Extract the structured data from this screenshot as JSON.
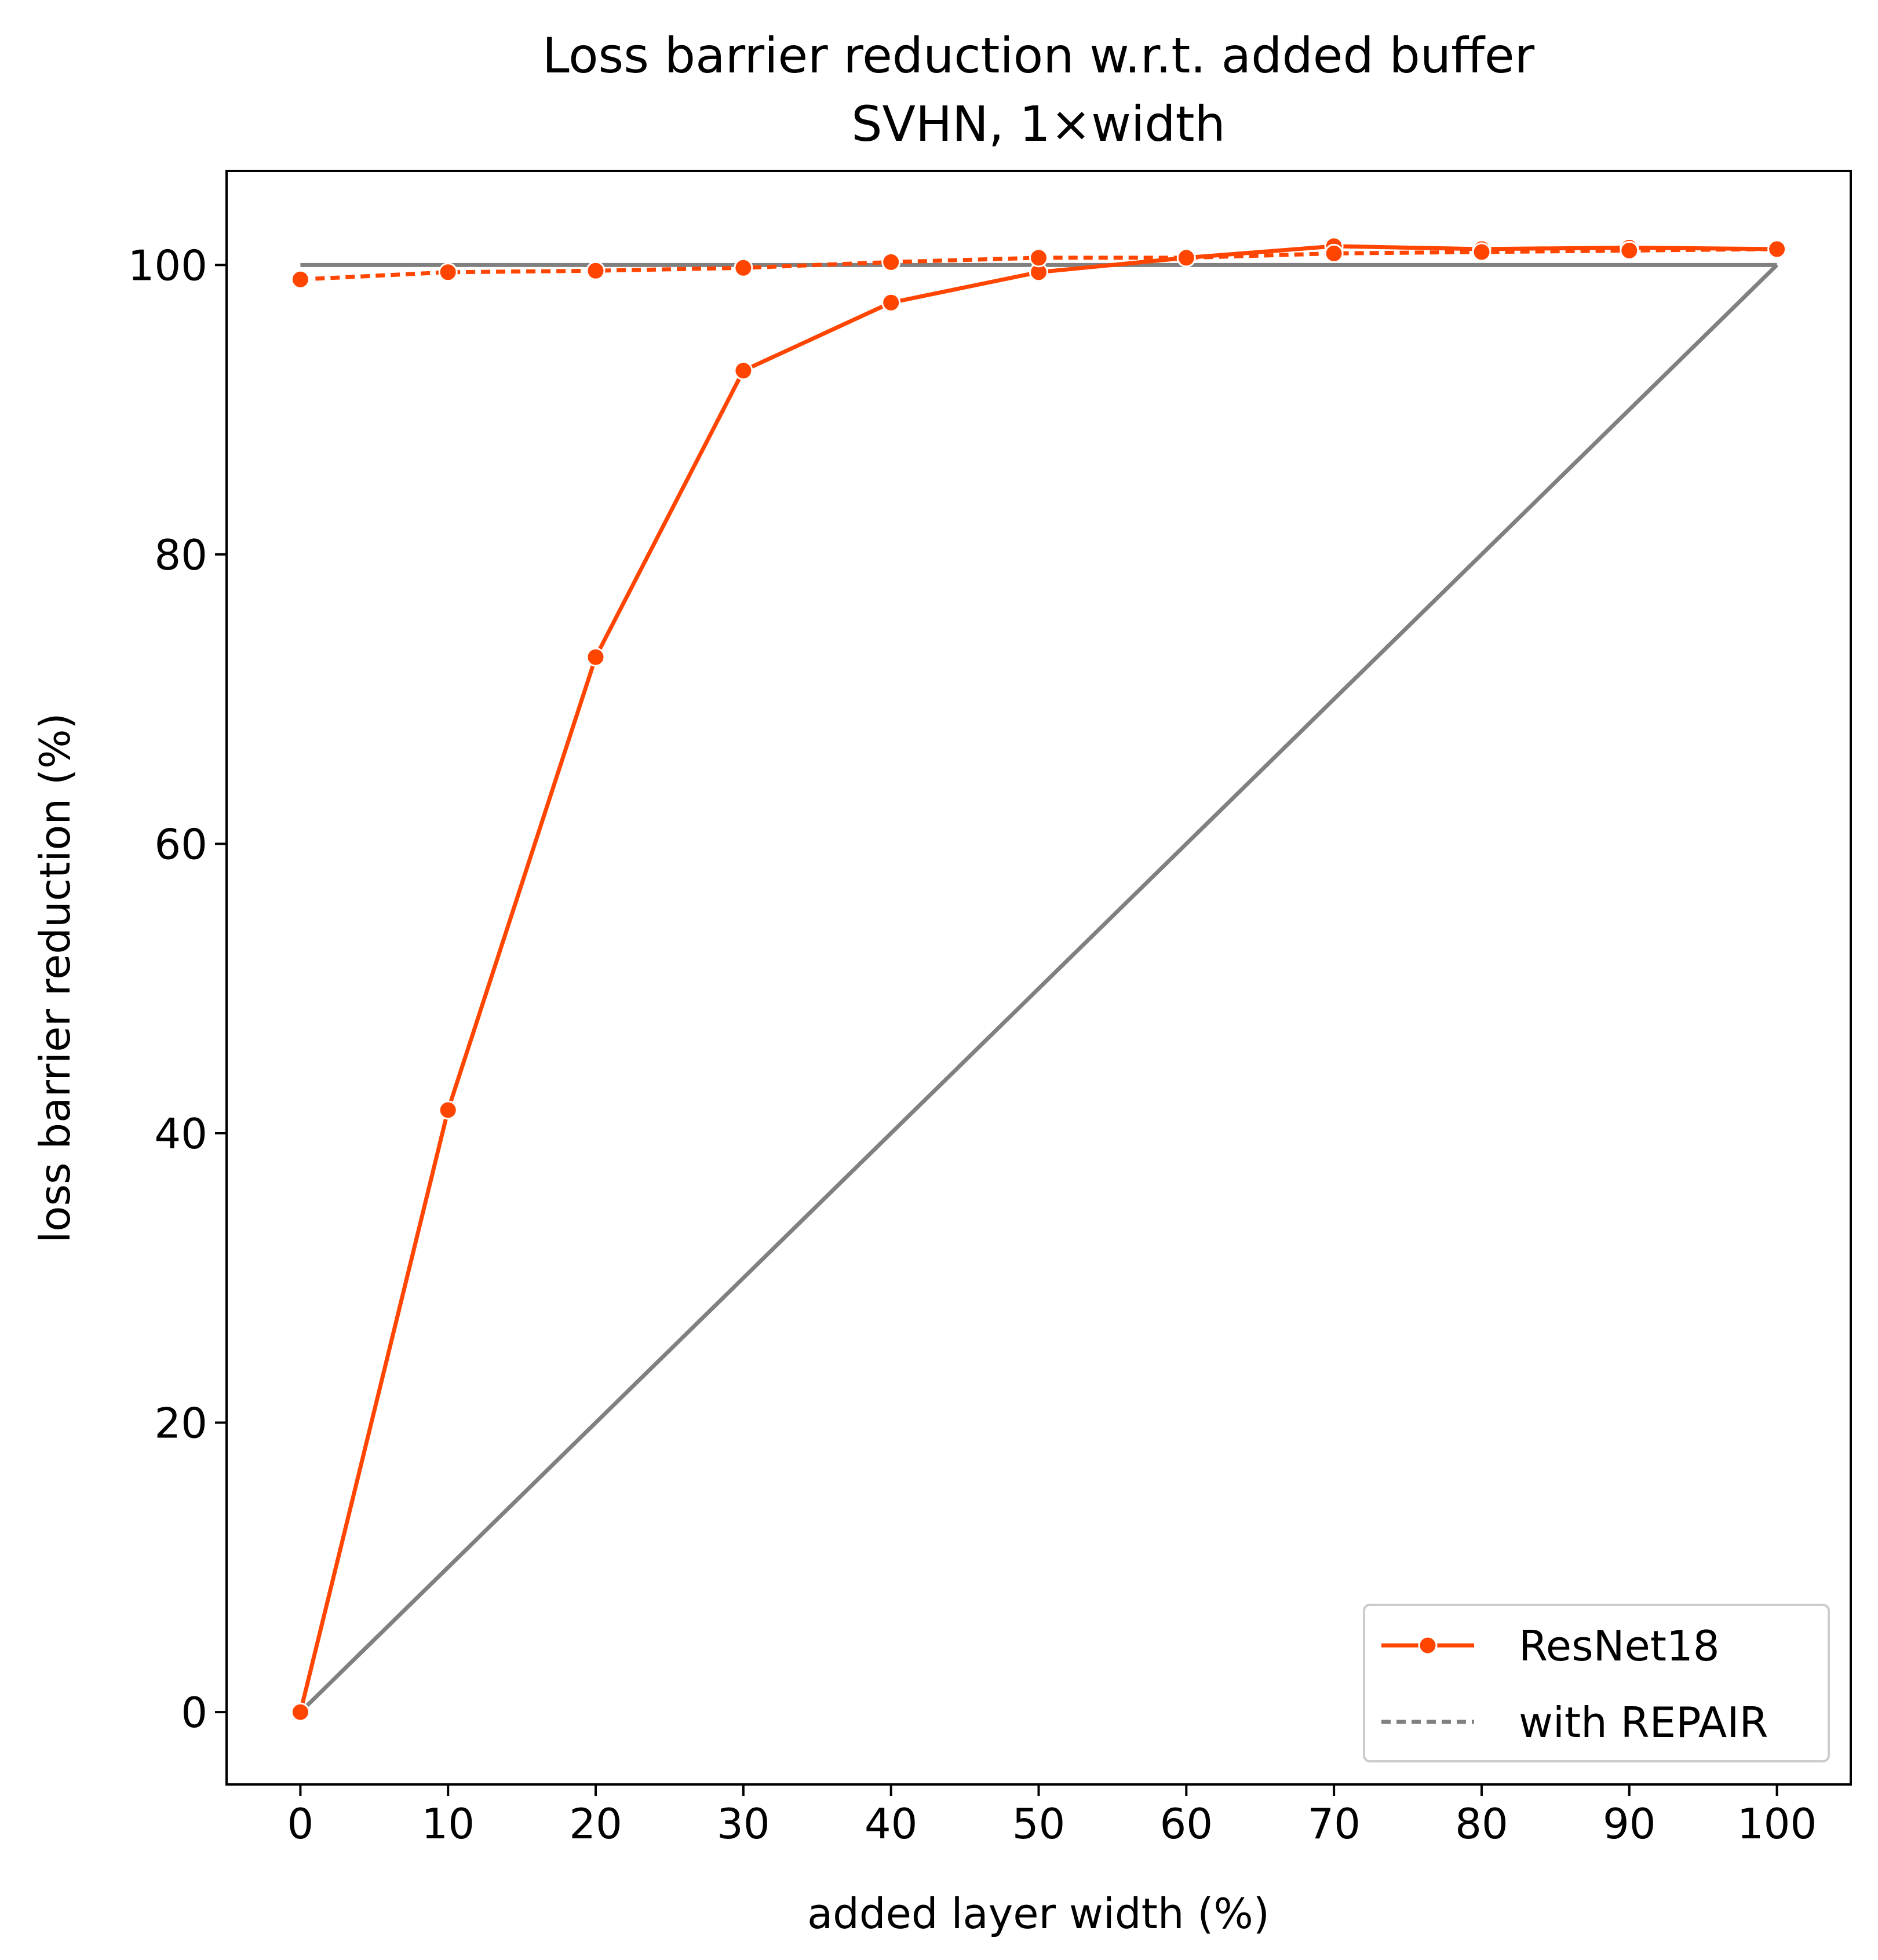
{
  "chart_data": {
    "type": "line",
    "title": "Loss barrier reduction w.r.t. added buffer",
    "subtitle": "SVHN, 1×width",
    "xlabel": "added layer width (%)",
    "ylabel": "loss barrier reduction (%)",
    "xlim": [
      -5,
      105
    ],
    "ylim": [
      -5,
      106.5
    ],
    "xticks": [
      0,
      10,
      20,
      30,
      40,
      50,
      60,
      70,
      80,
      90,
      100
    ],
    "yticks": [
      0,
      20,
      40,
      60,
      80,
      100
    ],
    "grid": false,
    "legend_position": "lower-right",
    "legend": [
      {
        "label": "ResNet18",
        "style": "solid-marker",
        "color": "#ff4500"
      },
      {
        "label": "with REPAIR",
        "style": "dotted",
        "color": "#808080"
      }
    ],
    "reference_lines": [
      {
        "role": "upper-bound",
        "x": [
          0,
          100
        ],
        "y": [
          100,
          100
        ],
        "color": "#808080"
      },
      {
        "role": "diagonal",
        "x": [
          0,
          100
        ],
        "y": [
          0,
          100
        ],
        "color": "#808080"
      }
    ],
    "series": [
      {
        "name": "ResNet18",
        "color": "#ff4500",
        "dash": "solid",
        "x": [
          0,
          10,
          20,
          30,
          40,
          50,
          60,
          70,
          80,
          90,
          100
        ],
        "y": [
          0,
          41.6,
          72.9,
          92.7,
          97.4,
          99.5,
          100.5,
          101.3,
          101.1,
          101.2,
          101.1
        ]
      },
      {
        "name": "with REPAIR",
        "color": "#ff4500",
        "dash": "dotted",
        "x": [
          0,
          10,
          20,
          30,
          40,
          50,
          60,
          70,
          80,
          90,
          100
        ],
        "y": [
          99.0,
          99.5,
          99.6,
          99.8,
          100.2,
          100.5,
          100.5,
          100.8,
          100.9,
          101.0,
          101.1
        ]
      }
    ]
  }
}
